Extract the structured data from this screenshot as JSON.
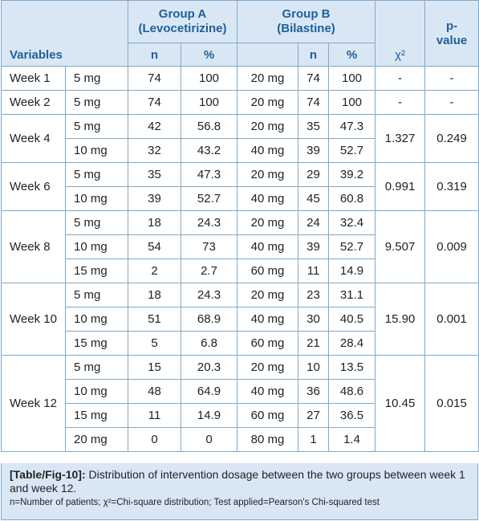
{
  "header": {
    "group_a_line1": "Group A",
    "group_a_line2": "(Levocetirizine)",
    "group_b_line1": "Group B",
    "group_b_line2": "(Bilastine)",
    "variables": "Variables",
    "n": "n",
    "pct": "%",
    "chi": "χ²",
    "pvalue_line1": "p-",
    "pvalue_line2": "value"
  },
  "rows": [
    {
      "week": "Week 1",
      "a_dose": "5 mg",
      "a_n": "74",
      "a_pct": "100",
      "b_dose": "20 mg",
      "b_n": "74",
      "b_pct": "100",
      "chi": "-",
      "p": "-"
    },
    {
      "week": "Week 2",
      "a_dose": "5 mg",
      "a_n": "74",
      "a_pct": "100",
      "b_dose": "20 mg",
      "b_n": "74",
      "b_pct": "100",
      "chi": "-",
      "p": "-"
    },
    {
      "week": "Week 4",
      "a_dose": "5 mg",
      "a_n": "42",
      "a_pct": "56.8",
      "b_dose": "20 mg",
      "b_n": "35",
      "b_pct": "47.3",
      "chi": "1.327",
      "p": "0.249"
    },
    {
      "a_dose": "10 mg",
      "a_n": "32",
      "a_pct": "43.2",
      "b_dose": "40 mg",
      "b_n": "39",
      "b_pct": "52.7"
    },
    {
      "week": "Week 6",
      "a_dose": "5 mg",
      "a_n": "35",
      "a_pct": "47.3",
      "b_dose": "20 mg",
      "b_n": "29",
      "b_pct": "39.2",
      "chi": "0.991",
      "p": "0.319"
    },
    {
      "a_dose": "10 mg",
      "a_n": "39",
      "a_pct": "52.7",
      "b_dose": "40 mg",
      "b_n": "45",
      "b_pct": "60.8"
    },
    {
      "week": "Week 8",
      "a_dose": "5 mg",
      "a_n": "18",
      "a_pct": "24.3",
      "b_dose": "20 mg",
      "b_n": "24",
      "b_pct": "32.4",
      "chi": "9.507",
      "p": "0.009"
    },
    {
      "a_dose": "10 mg",
      "a_n": "54",
      "a_pct": "73",
      "b_dose": "40 mg",
      "b_n": "39",
      "b_pct": "52.7"
    },
    {
      "a_dose": "15 mg",
      "a_n": "2",
      "a_pct": "2.7",
      "b_dose": "60 mg",
      "b_n": "11",
      "b_pct": "14.9"
    },
    {
      "week": "Week 10",
      "a_dose": "5 mg",
      "a_n": "18",
      "a_pct": "24.3",
      "b_dose": "20 mg",
      "b_n": "23",
      "b_pct": "31.1",
      "chi": "15.90",
      "p": "0.001"
    },
    {
      "a_dose": "10 mg",
      "a_n": "51",
      "a_pct": "68.9",
      "b_dose": "40 mg",
      "b_n": "30",
      "b_pct": "40.5"
    },
    {
      "a_dose": "15 mg",
      "a_n": "5",
      "a_pct": "6.8",
      "b_dose": "60 mg",
      "b_n": "21",
      "b_pct": "28.4"
    },
    {
      "week": "Week 12",
      "a_dose": "5 mg",
      "a_n": "15",
      "a_pct": "20.3",
      "b_dose": "20 mg",
      "b_n": "10",
      "b_pct": "13.5",
      "chi": "10.45",
      "p": "0.015"
    },
    {
      "a_dose": "10 mg",
      "a_n": "48",
      "a_pct": "64.9",
      "b_dose": "40 mg",
      "b_n": "36",
      "b_pct": "48.6"
    },
    {
      "a_dose": "15 mg",
      "a_n": "11",
      "a_pct": "14.9",
      "b_dose": "60 mg",
      "b_n": "27",
      "b_pct": "36.5"
    },
    {
      "a_dose": "20 mg",
      "a_n": "0",
      "a_pct": "0",
      "b_dose": "80 mg",
      "b_n": "1",
      "b_pct": "1.4"
    }
  ],
  "caption": {
    "label": "[Table/Fig-10]:",
    "text": "Distribution of intervention dosage between the two groups between week 1 and week 12.",
    "note": "n=Number of patients; χ²=Chi-square distribution; Test applied=Pearson's Chi-squared test"
  }
}
